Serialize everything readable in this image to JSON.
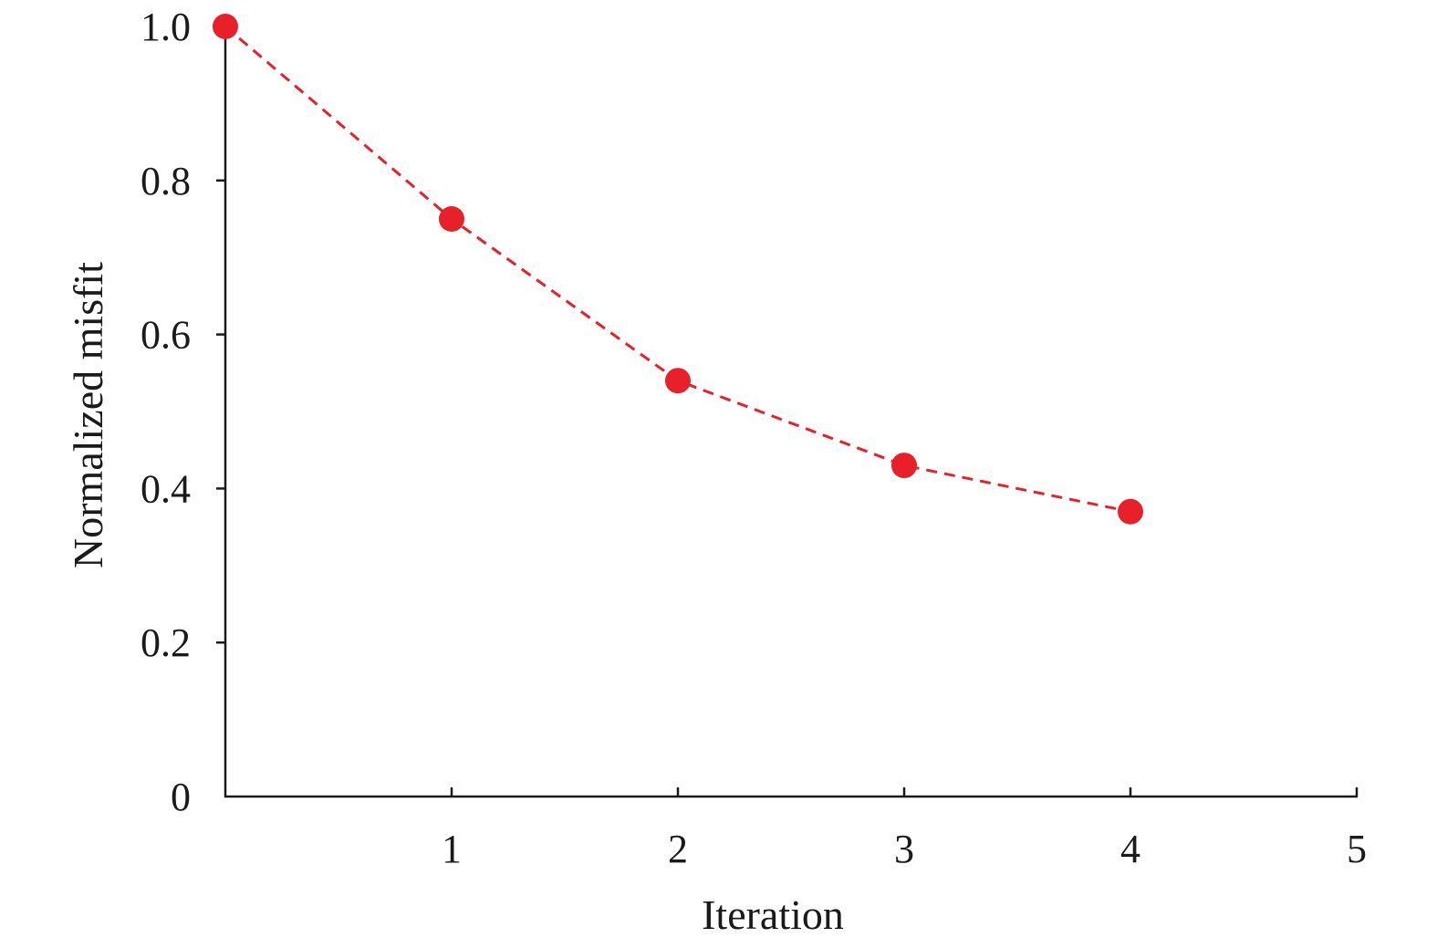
{
  "chart_data": {
    "type": "line",
    "title": "",
    "xlabel": "Iteration",
    "ylabel": "Normalized misfit",
    "xlim": [
      0,
      5
    ],
    "ylim": [
      0,
      1.0
    ],
    "x_ticks": [
      1,
      2,
      3,
      4,
      5
    ],
    "x_tick_labels": [
      "1",
      "2",
      "3",
      "4",
      "5"
    ],
    "y_ticks": [
      0,
      0.2,
      0.4,
      0.6,
      0.8,
      1.0
    ],
    "y_tick_labels": [
      "0",
      "0.2",
      "0.4",
      "0.6",
      "0.8",
      "1.0"
    ],
    "grid": false,
    "legend": "none",
    "series": [
      {
        "x": [
          0,
          1,
          2,
          3,
          4
        ],
        "y": [
          1.0,
          0.75,
          0.54,
          0.43,
          0.37
        ],
        "color": "#e8202a",
        "line_style": "dashed",
        "marker": "circle"
      }
    ]
  }
}
